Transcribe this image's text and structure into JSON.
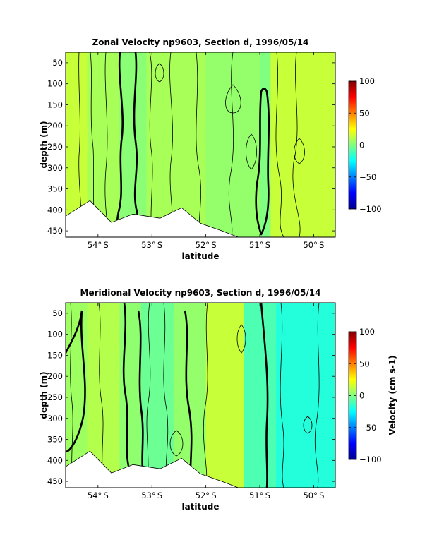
{
  "chart_data": [
    {
      "type": "contour",
      "title": "Zonal Velocity np9603, Section d, 1996/05/14",
      "xlabel": "latitude",
      "ylabel": "depth (m)",
      "xlim": [
        -54.6,
        -49.6
      ],
      "ylim": [
        465,
        25
      ],
      "x_ticks": [
        -54,
        -53,
        -52,
        -51,
        -50
      ],
      "x_tick_labels": [
        "54°S",
        "53°S",
        "52°S",
        "51°S",
        "50°S"
      ],
      "y_ticks": [
        50,
        100,
        150,
        200,
        250,
        300,
        350,
        400,
        450
      ],
      "bottom_depth": [
        {
          "lat": -54.6,
          "depth": 415
        },
        {
          "lat": -54.15,
          "depth": 378
        },
        {
          "lat": -53.75,
          "depth": 430
        },
        {
          "lat": -53.35,
          "depth": 410
        },
        {
          "lat": -52.85,
          "depth": 420
        },
        {
          "lat": -52.45,
          "depth": 395
        },
        {
          "lat": -52.1,
          "depth": 432
        },
        {
          "lat": -51.7,
          "depth": 450
        },
        {
          "lat": -51.4,
          "depth": 465
        }
      ],
      "bands": [
        {
          "lat_from": -54.6,
          "lat_to": -54.2,
          "velocity": 14
        },
        {
          "lat_from": -54.2,
          "lat_to": -53.6,
          "velocity": 8
        },
        {
          "lat_from": -53.6,
          "lat_to": -53.1,
          "velocity": 2
        },
        {
          "lat_from": -53.1,
          "lat_to": -52.0,
          "velocity": 8
        },
        {
          "lat_from": -52.0,
          "lat_to": -51.0,
          "velocity": 4
        },
        {
          "lat_from": -51.0,
          "lat_to": -50.8,
          "velocity": 0
        },
        {
          "lat_from": -50.8,
          "lat_to": -49.6,
          "velocity": 14
        }
      ],
      "colorbar": {
        "min": -100,
        "max": 100,
        "ticks": [
          -100,
          -50,
          0,
          50,
          100
        ],
        "label": ""
      }
    },
    {
      "type": "contour",
      "title": "Meridional Velocity np9603, Section d, 1996/05/14",
      "xlabel": "latitude",
      "ylabel": "depth (m)",
      "xlim": [
        -54.6,
        -49.6
      ],
      "ylim": [
        465,
        25
      ],
      "x_ticks": [
        -54,
        -53,
        -52,
        -51,
        -50
      ],
      "x_tick_labels": [
        "54°S",
        "53°S",
        "52°S",
        "51°S",
        "50°S"
      ],
      "y_ticks": [
        50,
        100,
        150,
        200,
        250,
        300,
        350,
        400,
        450
      ],
      "bottom_depth": [
        {
          "lat": -54.6,
          "depth": 415
        },
        {
          "lat": -54.15,
          "depth": 378
        },
        {
          "lat": -53.75,
          "depth": 430
        },
        {
          "lat": -53.35,
          "depth": 410
        },
        {
          "lat": -52.85,
          "depth": 420
        },
        {
          "lat": -52.45,
          "depth": 395
        },
        {
          "lat": -52.1,
          "depth": 432
        },
        {
          "lat": -51.7,
          "depth": 450
        },
        {
          "lat": -51.4,
          "depth": 465
        }
      ],
      "bands": [
        {
          "lat_from": -54.6,
          "lat_to": -54.2,
          "velocity": 6
        },
        {
          "lat_from": -54.2,
          "lat_to": -53.6,
          "velocity": 10
        },
        {
          "lat_from": -53.6,
          "lat_to": -53.2,
          "velocity": 3
        },
        {
          "lat_from": -53.2,
          "lat_to": -52.6,
          "velocity": -4
        },
        {
          "lat_from": -52.6,
          "lat_to": -52.0,
          "velocity": 4
        },
        {
          "lat_from": -52.0,
          "lat_to": -51.3,
          "velocity": 14
        },
        {
          "lat_from": -51.3,
          "lat_to": -50.7,
          "velocity": -10
        },
        {
          "lat_from": -50.7,
          "lat_to": -49.6,
          "velocity": -18
        }
      ],
      "colorbar": {
        "min": -100,
        "max": 100,
        "ticks": [
          -100,
          -50,
          0,
          50,
          100
        ],
        "label": "Velocity (cm s-1)"
      }
    }
  ]
}
